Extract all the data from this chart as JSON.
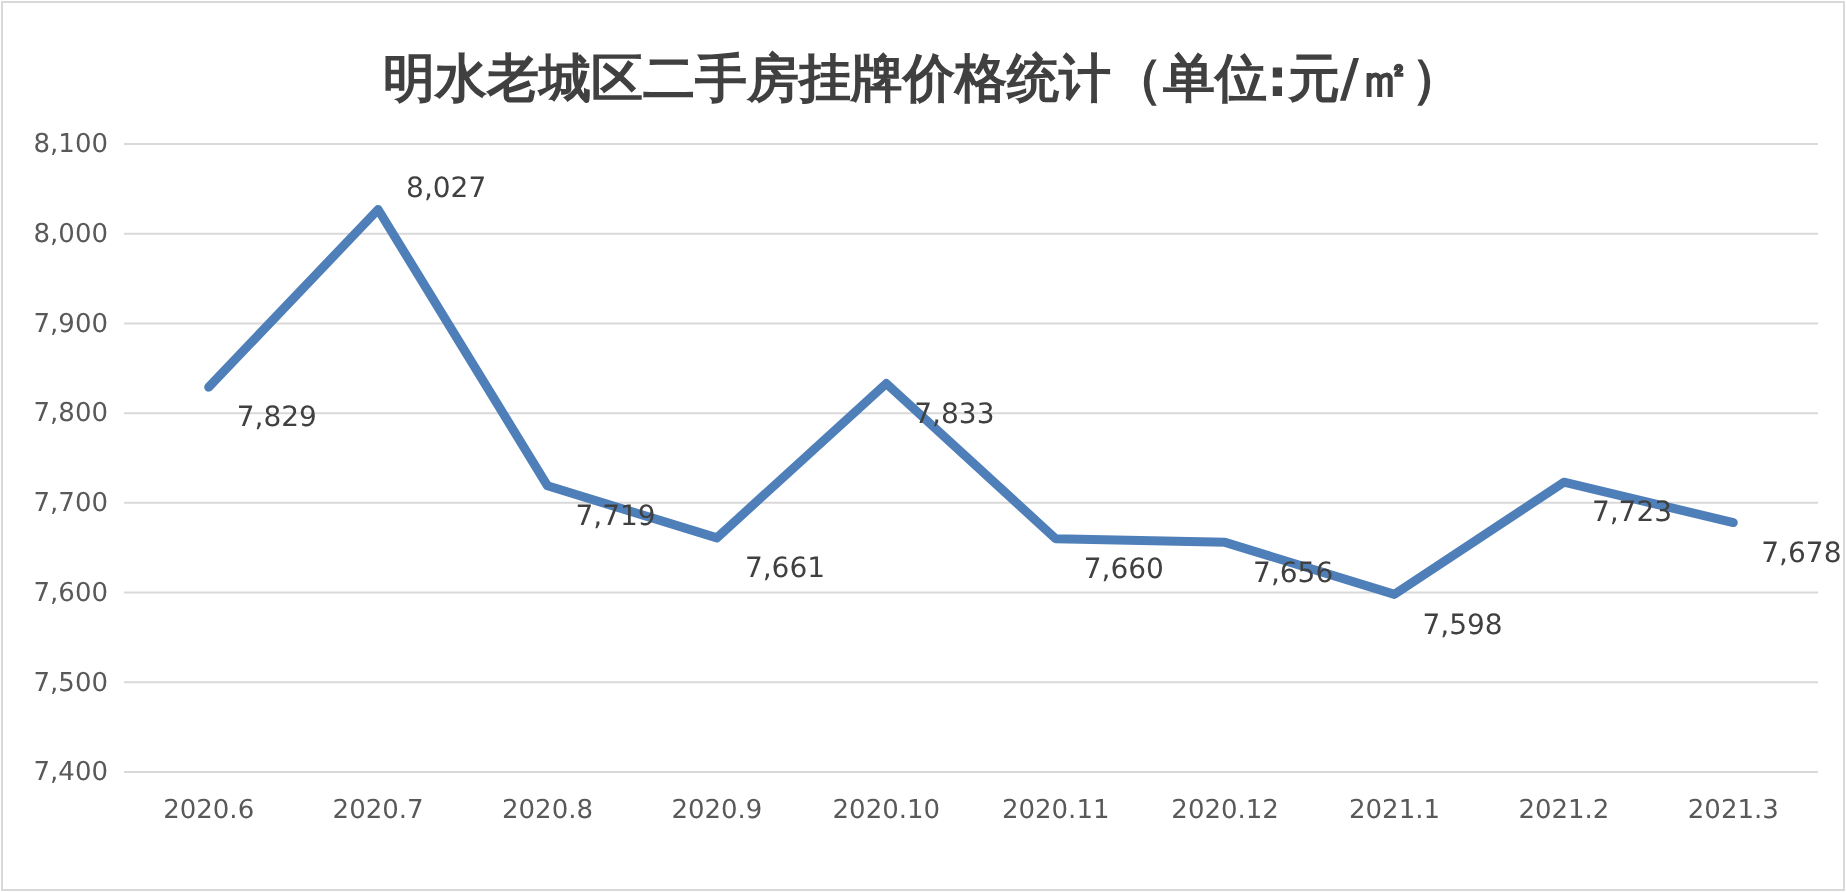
{
  "chart_data": {
    "type": "line",
    "title": "明水老城区二手房挂牌价格统计（单位:元/㎡）",
    "categories": [
      "2020.6",
      "2020.7",
      "2020.8",
      "2020.9",
      "2020.10",
      "2020.11",
      "2020.12",
      "2021.1",
      "2021.2",
      "2021.3"
    ],
    "series": [
      {
        "color": "#4f7fb8",
        "values": [
          7829,
          8027,
          7719,
          7661,
          7833,
          7660,
          7656,
          7598,
          7723,
          7678
        ],
        "value_labels": [
          "7,829",
          "8,027",
          "7,719",
          "7,661",
          "7,833",
          "7,660",
          "7,656",
          "7,598",
          "7,723",
          "7,678"
        ]
      }
    ],
    "ylim": [
      7400,
      8100
    ],
    "yticks": [
      {
        "value": 7400,
        "label": "7,400"
      },
      {
        "value": 7500,
        "label": "7,500"
      },
      {
        "value": 7600,
        "label": "7,600"
      },
      {
        "value": 7700,
        "label": "7,700"
      },
      {
        "value": 7800,
        "label": "7,800"
      },
      {
        "value": 7900,
        "label": "7,900"
      },
      {
        "value": 8000,
        "label": "8,000"
      },
      {
        "value": 8100,
        "label": "8,100"
      }
    ],
    "grid": "y",
    "marker": "none",
    "line_style": "solid"
  }
}
